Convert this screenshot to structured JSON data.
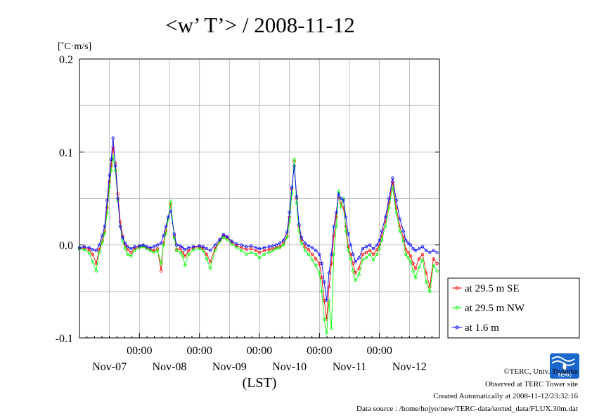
{
  "chart_data": {
    "type": "line",
    "title": "<w’ T’> / 2008-11-12",
    "ylabel": "[˚C·m/s]",
    "xlabel": "(LST)",
    "ylim": [
      -0.1,
      0.2
    ],
    "yticks": [
      "0.2",
      "0.1",
      "0.0",
      "-0.1"
    ],
    "ytick_values": [
      0.2,
      0.1,
      0.0,
      -0.1
    ],
    "xlim": [
      0,
      6
    ],
    "xtick_time": "00:00",
    "xtick_dates": [
      "Nov-07",
      "Nov-08",
      "Nov-09",
      "Nov-10",
      "Nov-11",
      "Nov-12"
    ],
    "xtick_positions_days": [
      1,
      2,
      3,
      4,
      5
    ],
    "grid": true,
    "legend_position": "bottom-right, outside plot",
    "series": [
      {
        "name": "at 29.5 m SE",
        "color": "#ff0000",
        "x": [
          0.0,
          0.08,
          0.16,
          0.22,
          0.28,
          0.33,
          0.38,
          0.42,
          0.46,
          0.5,
          0.53,
          0.56,
          0.6,
          0.64,
          0.68,
          0.72,
          0.76,
          0.8,
          0.86,
          0.92,
          1.0,
          1.06,
          1.12,
          1.18,
          1.24,
          1.3,
          1.36,
          1.4,
          1.44,
          1.48,
          1.52,
          1.58,
          1.62,
          1.68,
          1.72,
          1.76,
          1.82,
          1.9,
          2.0,
          2.06,
          2.12,
          2.18,
          2.26,
          2.34,
          2.4,
          2.46,
          2.54,
          2.62,
          2.7,
          2.78,
          2.86,
          2.94,
          3.0,
          3.08,
          3.16,
          3.22,
          3.28,
          3.34,
          3.4,
          3.46,
          3.5,
          3.54,
          3.58,
          3.62,
          3.66,
          3.7,
          3.76,
          3.82,
          3.88,
          3.94,
          4.0,
          4.04,
          4.08,
          4.12,
          4.16,
          4.2,
          4.24,
          4.28,
          4.32,
          4.36,
          4.4,
          4.44,
          4.48,
          4.52,
          4.56,
          4.6,
          4.66,
          4.72,
          4.78,
          4.84,
          4.9,
          4.96,
          5.0,
          5.04,
          5.1,
          5.16,
          5.22,
          5.28,
          5.34,
          5.4,
          5.44,
          5.48,
          5.52,
          5.56,
          5.6,
          5.66,
          5.72,
          5.78,
          5.84,
          5.9,
          5.96
        ],
        "y": [
          -0.004,
          -0.003,
          -0.005,
          -0.01,
          -0.02,
          -0.005,
          0.005,
          0.015,
          0.04,
          0.068,
          0.085,
          0.105,
          0.088,
          0.055,
          0.025,
          0.01,
          0.0,
          -0.005,
          -0.008,
          -0.004,
          -0.002,
          -0.001,
          -0.003,
          -0.005,
          -0.006,
          -0.004,
          -0.028,
          0.002,
          0.015,
          0.03,
          0.044,
          0.01,
          -0.005,
          -0.004,
          -0.008,
          -0.012,
          -0.006,
          -0.003,
          -0.002,
          -0.004,
          -0.01,
          -0.018,
          -0.004,
          0.005,
          0.01,
          0.008,
          0.003,
          -0.001,
          -0.003,
          -0.005,
          -0.004,
          -0.006,
          -0.008,
          -0.006,
          -0.005,
          -0.004,
          -0.003,
          -0.002,
          0.002,
          0.01,
          0.03,
          0.06,
          0.09,
          0.05,
          0.02,
          0.005,
          -0.002,
          -0.005,
          -0.01,
          -0.015,
          -0.02,
          -0.035,
          -0.06,
          -0.08,
          -0.045,
          -0.02,
          0.01,
          0.03,
          0.052,
          0.045,
          0.04,
          0.02,
          -0.002,
          -0.01,
          -0.02,
          -0.03,
          -0.025,
          -0.01,
          -0.008,
          -0.006,
          -0.01,
          -0.005,
          0.0,
          0.01,
          0.025,
          0.045,
          0.068,
          0.04,
          0.02,
          0.008,
          -0.005,
          -0.008,
          -0.012,
          -0.02,
          -0.025,
          -0.015,
          -0.01,
          -0.03,
          -0.045,
          -0.015,
          -0.02
        ]
      },
      {
        "name": "at 29.5 m NW",
        "color": "#00ff00",
        "x": [
          0.0,
          0.08,
          0.16,
          0.22,
          0.28,
          0.33,
          0.38,
          0.42,
          0.46,
          0.5,
          0.53,
          0.56,
          0.6,
          0.64,
          0.68,
          0.72,
          0.76,
          0.8,
          0.86,
          0.92,
          1.0,
          1.06,
          1.12,
          1.18,
          1.24,
          1.3,
          1.36,
          1.4,
          1.44,
          1.48,
          1.52,
          1.58,
          1.62,
          1.68,
          1.72,
          1.76,
          1.82,
          1.9,
          2.0,
          2.06,
          2.12,
          2.18,
          2.26,
          2.34,
          2.4,
          2.46,
          2.54,
          2.62,
          2.7,
          2.78,
          2.86,
          2.94,
          3.0,
          3.08,
          3.16,
          3.22,
          3.28,
          3.34,
          3.4,
          3.46,
          3.5,
          3.54,
          3.58,
          3.62,
          3.66,
          3.7,
          3.76,
          3.82,
          3.88,
          3.94,
          4.0,
          4.04,
          4.08,
          4.12,
          4.16,
          4.2,
          4.24,
          4.28,
          4.32,
          4.36,
          4.4,
          4.44,
          4.48,
          4.52,
          4.56,
          4.6,
          4.66,
          4.72,
          4.78,
          4.84,
          4.9,
          4.96,
          5.0,
          5.04,
          5.1,
          5.16,
          5.22,
          5.28,
          5.34,
          5.4,
          5.44,
          5.48,
          5.52,
          5.56,
          5.6,
          5.66,
          5.72,
          5.78,
          5.84,
          5.9,
          5.96
        ],
        "y": [
          -0.004,
          -0.005,
          -0.008,
          -0.018,
          -0.028,
          -0.008,
          0.003,
          0.012,
          0.035,
          0.062,
          0.08,
          0.095,
          0.08,
          0.048,
          0.02,
          0.005,
          -0.004,
          -0.01,
          -0.012,
          -0.006,
          -0.003,
          -0.002,
          -0.004,
          -0.006,
          -0.008,
          -0.006,
          -0.02,
          0.0,
          0.012,
          0.028,
          0.047,
          0.008,
          -0.006,
          -0.008,
          -0.012,
          -0.022,
          -0.01,
          -0.005,
          -0.004,
          -0.006,
          -0.015,
          -0.025,
          -0.006,
          0.004,
          0.008,
          0.006,
          0.001,
          -0.003,
          -0.006,
          -0.01,
          -0.008,
          -0.01,
          -0.014,
          -0.01,
          -0.008,
          -0.006,
          -0.004,
          -0.003,
          0.0,
          0.008,
          0.026,
          0.055,
          0.092,
          0.045,
          0.015,
          0.002,
          -0.006,
          -0.01,
          -0.016,
          -0.022,
          -0.03,
          -0.05,
          -0.08,
          -0.095,
          -0.06,
          -0.09,
          -0.01,
          0.02,
          0.058,
          0.04,
          0.05,
          0.015,
          -0.006,
          -0.015,
          -0.028,
          -0.038,
          -0.032,
          -0.016,
          -0.014,
          -0.01,
          -0.016,
          -0.01,
          -0.004,
          0.006,
          0.02,
          0.04,
          0.062,
          0.035,
          0.015,
          0.004,
          -0.01,
          -0.014,
          -0.018,
          -0.028,
          -0.035,
          -0.024,
          -0.016,
          -0.04,
          -0.05,
          -0.022,
          -0.028
        ]
      },
      {
        "name": "at 1.6 m",
        "color": "#0000ff",
        "x": [
          0.0,
          0.08,
          0.16,
          0.22,
          0.28,
          0.33,
          0.38,
          0.42,
          0.46,
          0.5,
          0.53,
          0.56,
          0.6,
          0.64,
          0.68,
          0.72,
          0.76,
          0.8,
          0.86,
          0.92,
          1.0,
          1.06,
          1.12,
          1.18,
          1.24,
          1.3,
          1.36,
          1.4,
          1.44,
          1.48,
          1.52,
          1.58,
          1.62,
          1.68,
          1.72,
          1.76,
          1.82,
          1.9,
          2.0,
          2.06,
          2.12,
          2.18,
          2.26,
          2.34,
          2.4,
          2.46,
          2.54,
          2.62,
          2.7,
          2.78,
          2.86,
          2.94,
          3.0,
          3.08,
          3.16,
          3.22,
          3.28,
          3.34,
          3.4,
          3.46,
          3.5,
          3.54,
          3.58,
          3.62,
          3.66,
          3.7,
          3.76,
          3.82,
          3.88,
          3.94,
          4.0,
          4.04,
          4.08,
          4.12,
          4.16,
          4.2,
          4.24,
          4.28,
          4.32,
          4.36,
          4.4,
          4.44,
          4.48,
          4.52,
          4.56,
          4.6,
          4.66,
          4.72,
          4.78,
          4.84,
          4.9,
          4.96,
          5.0,
          5.04,
          5.1,
          5.16,
          5.22,
          5.28,
          5.34,
          5.4,
          5.44,
          5.48,
          5.52,
          5.56,
          5.6,
          5.66,
          5.72,
          5.78,
          5.84,
          5.9,
          5.96
        ],
        "y": [
          -0.003,
          -0.002,
          -0.003,
          -0.005,
          -0.006,
          0.0,
          0.01,
          0.02,
          0.048,
          0.075,
          0.092,
          0.115,
          0.085,
          0.05,
          0.02,
          0.008,
          0.002,
          -0.002,
          -0.004,
          -0.002,
          -0.001,
          0.0,
          -0.002,
          -0.003,
          -0.002,
          0.0,
          0.002,
          0.01,
          0.02,
          0.03,
          0.037,
          0.012,
          0.0,
          -0.001,
          -0.003,
          -0.005,
          -0.003,
          -0.002,
          -0.001,
          -0.002,
          -0.004,
          -0.006,
          0.0,
          0.006,
          0.011,
          0.009,
          0.004,
          0.001,
          0.0,
          -0.002,
          -0.001,
          -0.003,
          -0.004,
          -0.003,
          -0.002,
          -0.001,
          0.0,
          0.002,
          0.005,
          0.014,
          0.035,
          0.062,
          0.085,
          0.052,
          0.022,
          0.008,
          0.002,
          -0.001,
          -0.003,
          -0.006,
          -0.01,
          -0.02,
          -0.04,
          -0.06,
          -0.03,
          -0.01,
          0.02,
          0.035,
          0.055,
          0.05,
          0.048,
          0.03,
          0.012,
          0.0,
          -0.01,
          -0.018,
          -0.014,
          -0.004,
          -0.002,
          0.0,
          -0.004,
          0.0,
          0.005,
          0.015,
          0.03,
          0.05,
          0.072,
          0.048,
          0.028,
          0.015,
          0.005,
          0.002,
          0.0,
          -0.004,
          -0.006,
          -0.004,
          -0.002,
          -0.006,
          -0.008,
          -0.006,
          -0.008
        ]
      }
    ]
  },
  "credits": {
    "copyright": "©TERC, Univ. Tsukuba",
    "observed": "Observed at TERC Tower site",
    "created": "Created Automatically at 2008-11-12/23:32:16",
    "source": "Data source : /home/hojyo/new/TERC-data/sorted_data/FLUX.30m.dat"
  },
  "logo": {
    "text": "TERC",
    "color": "#1a66cc"
  }
}
